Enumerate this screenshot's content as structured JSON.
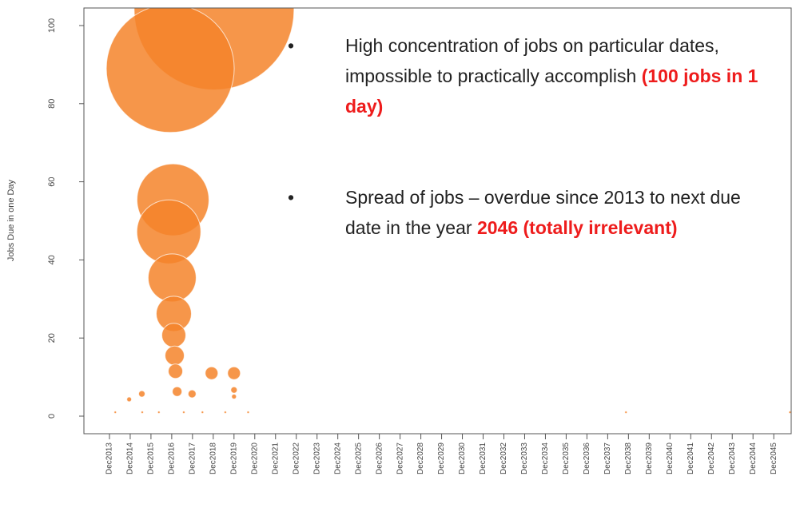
{
  "chart_data": {
    "type": "bubble",
    "ylabel": "Jobs Due in one Day",
    "color": "#f5842a",
    "xlim": [
      2012.69,
      2046.76
    ],
    "ylim": [
      -4.5,
      104.5
    ],
    "yticks": [
      0,
      20,
      40,
      60,
      80,
      100
    ],
    "xticks": [
      {
        "value": 2013.92,
        "label": "Dec2013"
      },
      {
        "value": 2014.92,
        "label": "Dec2014"
      },
      {
        "value": 2015.92,
        "label": "Dec2015"
      },
      {
        "value": 2016.92,
        "label": "Dec2016"
      },
      {
        "value": 2017.92,
        "label": "Dec2017"
      },
      {
        "value": 2018.92,
        "label": "Dec2018"
      },
      {
        "value": 2019.92,
        "label": "Dec2019"
      },
      {
        "value": 2020.92,
        "label": "Dec2020"
      },
      {
        "value": 2021.92,
        "label": "Dec2021"
      },
      {
        "value": 2022.92,
        "label": "Dec2022"
      },
      {
        "value": 2023.92,
        "label": "Dec2023"
      },
      {
        "value": 2024.92,
        "label": "Dec2024"
      },
      {
        "value": 2025.92,
        "label": "Dec2025"
      },
      {
        "value": 2026.92,
        "label": "Dec2026"
      },
      {
        "value": 2027.92,
        "label": "Dec2027"
      },
      {
        "value": 2028.92,
        "label": "Dec2028"
      },
      {
        "value": 2029.92,
        "label": "Dec2029"
      },
      {
        "value": 2030.92,
        "label": "Dec2030"
      },
      {
        "value": 2031.92,
        "label": "Dec2031"
      },
      {
        "value": 2032.92,
        "label": "Dec2032"
      },
      {
        "value": 2033.92,
        "label": "Dec2033"
      },
      {
        "value": 2034.92,
        "label": "Dec2034"
      },
      {
        "value": 2035.92,
        "label": "Dec2035"
      },
      {
        "value": 2036.92,
        "label": "Dec2036"
      },
      {
        "value": 2037.92,
        "label": "Dec2037"
      },
      {
        "value": 2038.92,
        "label": "Dec2038"
      },
      {
        "value": 2039.92,
        "label": "Dec2039"
      },
      {
        "value": 2040.92,
        "label": "Dec2040"
      },
      {
        "value": 2041.92,
        "label": "Dec2041"
      },
      {
        "value": 2042.92,
        "label": "Dec2042"
      },
      {
        "value": 2043.92,
        "label": "Dec2043"
      },
      {
        "value": 2044.92,
        "label": "Dec2044"
      },
      {
        "value": 2045.92,
        "label": "Dec2045"
      }
    ],
    "x": [
      2018.96,
      2016.85,
      2016.98,
      2016.78,
      2016.94,
      2017.02,
      2017.02,
      2017.06,
      2017.1,
      2017.18,
      2018.84,
      2019.92,
      2019.92,
      2019.92,
      2015.48,
      2014.87,
      2017.9,
      2014.2,
      2015.5,
      2016.3,
      2017.5,
      2018.4,
      2019.5,
      2020.6,
      2038.8,
      2046.7
    ],
    "y": [
      104,
      89,
      55.4,
      47.2,
      35.4,
      26.2,
      20.7,
      15.5,
      11.5,
      6.3,
      11,
      11,
      6.7,
      5,
      5.7,
      4.3,
      5.7,
      1,
      1,
      1,
      1,
      1,
      1,
      1,
      1,
      1
    ],
    "sizes": [
      100,
      80,
      45,
      40,
      30,
      22,
      15,
      12,
      9,
      6,
      8,
      8,
      4,
      3,
      4,
      3,
      5,
      1.5,
      1.5,
      1.5,
      1.5,
      1.5,
      1.5,
      1.5,
      1.5,
      1.5
    ],
    "bullets": [
      [
        {
          "text": "High concentration of jobs on particular dates, impossible to practically accomplish ",
          "emphasis": false
        },
        {
          "text": "(100 jobs in 1 day)",
          "emphasis": true
        }
      ],
      [
        {
          "text": "Spread of jobs – overdue since 2013 to next due date in the year ",
          "emphasis": false
        },
        {
          "text": "2046",
          "emphasis": true
        },
        {
          "text": " (totally irrelevant)",
          "emphasis": true
        }
      ]
    ],
    "bullet_symbol": "•"
  }
}
